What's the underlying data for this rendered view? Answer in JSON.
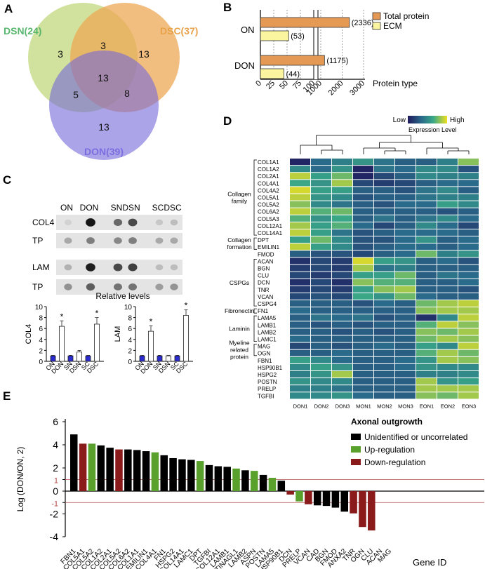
{
  "panels": {
    "a": "A",
    "b": "B",
    "c": "C",
    "d": "D",
    "e": "E"
  },
  "venn": {
    "sets": [
      {
        "label": "DSN(24)",
        "color": "#59b66f",
        "fill": "#c8dd8c"
      },
      {
        "label": "DSC(37)",
        "color": "#e8a24a",
        "fill": "#eda854"
      },
      {
        "label": "DON(39)",
        "color": "#7b6ee0",
        "fill": "#7467d8"
      }
    ],
    "counts": {
      "dsn_only": "3",
      "dsn_dsc": "3",
      "dsc_only": "13",
      "all": "13",
      "dsn_don": "5",
      "dsc_don": "8",
      "don_only": "13"
    }
  },
  "panel_b": {
    "chart_data": {
      "type": "bar",
      "orientation": "horizontal",
      "categories": [
        "ON",
        "DON"
      ],
      "series": [
        {
          "name": "Total protein",
          "color": "#e49a55",
          "values": [
            2336,
            1175
          ]
        },
        {
          "name": "ECM",
          "color": "#fbf5a0",
          "values": [
            53,
            44
          ]
        }
      ],
      "value_labels": {
        "total": [
          "(2336)",
          "(1175)"
        ],
        "ecm": [
          "(53)",
          "(44)"
        ]
      },
      "xlabel": "Protein type",
      "xticks": [
        "0",
        "25",
        "50",
        "75",
        "100",
        "1000",
        "2000",
        "3000"
      ],
      "axis_break": true
    }
  },
  "panel_c": {
    "blot_cols": [
      "ON",
      "DON",
      "SN",
      "DSN",
      "SC",
      "DSC"
    ],
    "blot_rows": [
      "COL4",
      "TP",
      "LAM",
      "TP"
    ],
    "title": "Relative levels",
    "chart_data": [
      {
        "type": "bar",
        "ylabel": "COL4",
        "categories": [
          "ON",
          "DON",
          "SN",
          "DSN",
          "SC",
          "DSC"
        ],
        "values": [
          1,
          6.4,
          1,
          1.7,
          1,
          6.8
        ],
        "errors": [
          0.1,
          1.0,
          0.1,
          0.3,
          0.1,
          1.2
        ],
        "significant": [
          false,
          true,
          false,
          false,
          false,
          true
        ],
        "yticks": [
          "0",
          "2",
          "4",
          "6",
          "8",
          "10"
        ],
        "ylim": [
          0,
          10
        ]
      },
      {
        "type": "bar",
        "ylabel": "LAM",
        "categories": [
          "ON",
          "DON",
          "SN",
          "DSN",
          "SC",
          "DSC"
        ],
        "values": [
          1,
          5.5,
          1,
          1,
          1,
          8.4
        ],
        "errors": [
          0.1,
          1.0,
          0.1,
          0.1,
          0.1,
          1.0
        ],
        "significant": [
          false,
          true,
          false,
          false,
          false,
          true
        ],
        "yticks": [
          "0",
          "2",
          "4",
          "6",
          "8",
          "10"
        ],
        "ylim": [
          0,
          10
        ]
      }
    ],
    "star": "*"
  },
  "panel_d": {
    "legend_low": "Low",
    "legend_high": "High",
    "legend_title": "Expression Level",
    "columns": [
      "DON1",
      "DON2",
      "DON3",
      "MON1",
      "MON2",
      "MON3",
      "EON1",
      "EON2",
      "EON3"
    ],
    "rows": [
      "COL1A1",
      "COL1A2",
      "COL2A1",
      "COL4A1",
      "COL4A2",
      "COL5A1",
      "COL5A2",
      "COL6A2",
      "COL5A3",
      "COL12A1",
      "COL14A1",
      "DPT",
      "EMILIN1",
      "FMOD",
      "ACAN",
      "BGN",
      "CLU",
      "DCN",
      "TNR",
      "VCAN",
      "CSPG4",
      "FN1",
      "LAMA5",
      "LAMB1",
      "LAMB2",
      "LAMC1",
      "MAG",
      "OGN",
      "FBN1",
      "HSP90B1",
      "HSPG2",
      "POSTN",
      "PRELP",
      "TGFBI"
    ],
    "groups": [
      {
        "label": [
          "Collagen",
          "family"
        ],
        "start": 0,
        "end": 10
      },
      {
        "label": [
          "Collagen",
          "formation"
        ],
        "start": 11,
        "end": 12
      },
      {
        "label": [
          "CSPGs"
        ],
        "start": 14,
        "end": 20
      },
      {
        "label": [
          "Fibronectin"
        ],
        "start": 21,
        "end": 21
      },
      {
        "label": [
          "Laminin"
        ],
        "start": 22,
        "end": 25
      },
      {
        "label": [
          "Myeline",
          "related",
          "protein"
        ],
        "start": 26,
        "end": 27
      }
    ],
    "chart_data": {
      "type": "heatmap",
      "values": [
        [
          0.05,
          0.35,
          0.45,
          0.55,
          0.4,
          0.3,
          0.3,
          0.45,
          0.8
        ],
        [
          0.5,
          0.35,
          0.55,
          0.05,
          0.4,
          0.35,
          0.5,
          0.5,
          0.25
        ],
        [
          0.9,
          0.6,
          0.75,
          0.05,
          0.2,
          0.3,
          0.5,
          0.45,
          0.45
        ],
        [
          0.65,
          0.55,
          0.85,
          0.2,
          0.15,
          0.2,
          0.3,
          0.35,
          0.35
        ],
        [
          0.95,
          0.6,
          0.6,
          0.3,
          0.3,
          0.25,
          0.4,
          0.5,
          0.3
        ],
        [
          0.9,
          0.55,
          0.5,
          0.25,
          0.3,
          0.3,
          0.4,
          0.45,
          0.45
        ],
        [
          0.8,
          0.5,
          0.4,
          0.3,
          0.25,
          0.35,
          0.35,
          0.6,
          0.5
        ],
        [
          0.9,
          0.7,
          0.75,
          0.3,
          0.3,
          0.3,
          0.3,
          0.25,
          0.3
        ],
        [
          0.7,
          0.55,
          0.65,
          0.3,
          0.4,
          0.3,
          0.4,
          0.5,
          0.35
        ],
        [
          0.85,
          0.6,
          0.7,
          0.35,
          0.2,
          0.3,
          0.5,
          0.35,
          0.2
        ],
        [
          0.9,
          0.6,
          0.4,
          0.25,
          0.3,
          0.35,
          0.35,
          0.35,
          0.3
        ],
        [
          0.6,
          0.75,
          0.5,
          0.25,
          0.25,
          0.35,
          0.55,
          0.3,
          0.35
        ],
        [
          0.9,
          0.6,
          0.5,
          0.25,
          0.3,
          0.35,
          0.35,
          0.3,
          0.35
        ],
        [
          0.3,
          0.25,
          0.25,
          0.2,
          0.3,
          0.35,
          0.75,
          0.45,
          0.55
        ],
        [
          0.1,
          0.2,
          0.15,
          0.95,
          0.6,
          0.55,
          0.3,
          0.35,
          0.25
        ],
        [
          0.15,
          0.2,
          0.15,
          0.85,
          0.4,
          0.45,
          0.3,
          0.3,
          0.3
        ],
        [
          0.2,
          0.15,
          0.2,
          0.6,
          0.6,
          0.75,
          0.3,
          0.4,
          0.35
        ],
        [
          0.1,
          0.2,
          0.1,
          0.8,
          0.7,
          0.7,
          0.3,
          0.3,
          0.35
        ],
        [
          0.15,
          0.2,
          0.15,
          0.6,
          0.8,
          0.85,
          0.3,
          0.3,
          0.25
        ],
        [
          0.2,
          0.25,
          0.2,
          0.65,
          0.55,
          0.75,
          0.35,
          0.3,
          0.3
        ],
        [
          0.3,
          0.3,
          0.3,
          0.25,
          0.35,
          0.3,
          0.75,
          0.85,
          0.9
        ],
        [
          0.35,
          0.3,
          0.3,
          0.3,
          0.3,
          0.3,
          0.8,
          0.85,
          0.85
        ],
        [
          0.3,
          0.4,
          0.35,
          0.4,
          0.25,
          0.3,
          0.1,
          0.5,
          0.9
        ],
        [
          0.3,
          0.25,
          0.3,
          0.25,
          0.3,
          0.3,
          0.7,
          0.9,
          0.8
        ],
        [
          0.3,
          0.3,
          0.25,
          0.3,
          0.25,
          0.3,
          0.8,
          0.75,
          0.85
        ],
        [
          0.35,
          0.3,
          0.3,
          0.3,
          0.3,
          0.3,
          0.75,
          0.85,
          0.8
        ],
        [
          0.2,
          0.3,
          0.25,
          0.3,
          0.35,
          0.3,
          0.6,
          0.5,
          0.9
        ],
        [
          0.3,
          0.3,
          0.35,
          0.3,
          0.3,
          0.3,
          0.7,
          0.85,
          0.75
        ],
        [
          0.6,
          0.5,
          0.35,
          0.3,
          0.3,
          0.35,
          0.55,
          0.85,
          0.8
        ],
        [
          0.5,
          0.6,
          0.55,
          0.3,
          0.3,
          0.35,
          0.55,
          0.5,
          0.5
        ],
        [
          0.45,
          0.55,
          0.85,
          0.3,
          0.3,
          0.3,
          0.45,
          0.45,
          0.5
        ],
        [
          0.55,
          0.5,
          0.5,
          0.3,
          0.3,
          0.3,
          0.85,
          0.55,
          0.6
        ],
        [
          0.45,
          0.45,
          0.4,
          0.3,
          0.3,
          0.3,
          0.85,
          0.85,
          0.85
        ],
        [
          0.5,
          0.5,
          0.55,
          0.35,
          0.3,
          0.3,
          0.8,
          0.75,
          0.85
        ]
      ]
    }
  },
  "panel_e": {
    "legend_title": "Axonal outgrowth",
    "legend": [
      {
        "name": "Unidentified or uncorrelated",
        "color": "#000000"
      },
      {
        "name": "Up-regulation",
        "color": "#5aa02c"
      },
      {
        "name": "Down-regulation",
        "color": "#8b1a1a"
      }
    ],
    "ylabel": "Log (DON/ON, 2)",
    "xlabel": "Gene ID",
    "yticks": [
      "6",
      "4",
      "2",
      "1",
      "0",
      "-1",
      "-2",
      "-4"
    ],
    "chart_data": {
      "type": "bar",
      "categories": [
        "FBN1",
        "COL5A1",
        "COL5A2",
        "COL1A2",
        "COL2A1",
        "COL5A2",
        "COL6A2",
        "COL1A1",
        "EMILIN1",
        "COL4A1",
        "FN1",
        "HSPG2",
        "COL14A1",
        "LAMC1",
        "DPT",
        "TGFBI",
        "COL12A1",
        "LAMB1",
        "TINAGL1",
        "LAMB2",
        "ASPN",
        "POSTN",
        "LAMA5",
        "HSP90B1",
        "DCN",
        "PRELP",
        "VCAN",
        "CAD",
        "BGN",
        "FMOD",
        "ANXA2",
        "TNR",
        "OGN",
        "CLU",
        "ACAN",
        "MAG"
      ],
      "values": [
        4.9,
        4.1,
        4.1,
        3.95,
        3.75,
        3.6,
        3.6,
        3.55,
        3.45,
        3.35,
        3.1,
        2.85,
        2.75,
        2.7,
        2.6,
        2.25,
        2.15,
        2.1,
        1.95,
        1.8,
        1.75,
        1.4,
        1.15,
        0.9,
        -0.3,
        -0.9,
        -1.15,
        -1.25,
        -1.3,
        -1.45,
        -1.8,
        -1.95,
        -3.15,
        -3.45,
        0,
        0
      ],
      "colors": [
        "k",
        "r",
        "g",
        "k",
        "k",
        "r",
        "k",
        "k",
        "k",
        "g",
        "k",
        "k",
        "k",
        "k",
        "g",
        "k",
        "k",
        "k",
        "g",
        "k",
        "g",
        "k",
        "g",
        "k",
        "r",
        "g",
        "r",
        "k",
        "k",
        "k",
        "k",
        "r",
        "r",
        "r",
        "k",
        "k"
      ],
      "ylim": [
        -4,
        6
      ],
      "reference_lines": [
        1,
        -1
      ]
    }
  }
}
